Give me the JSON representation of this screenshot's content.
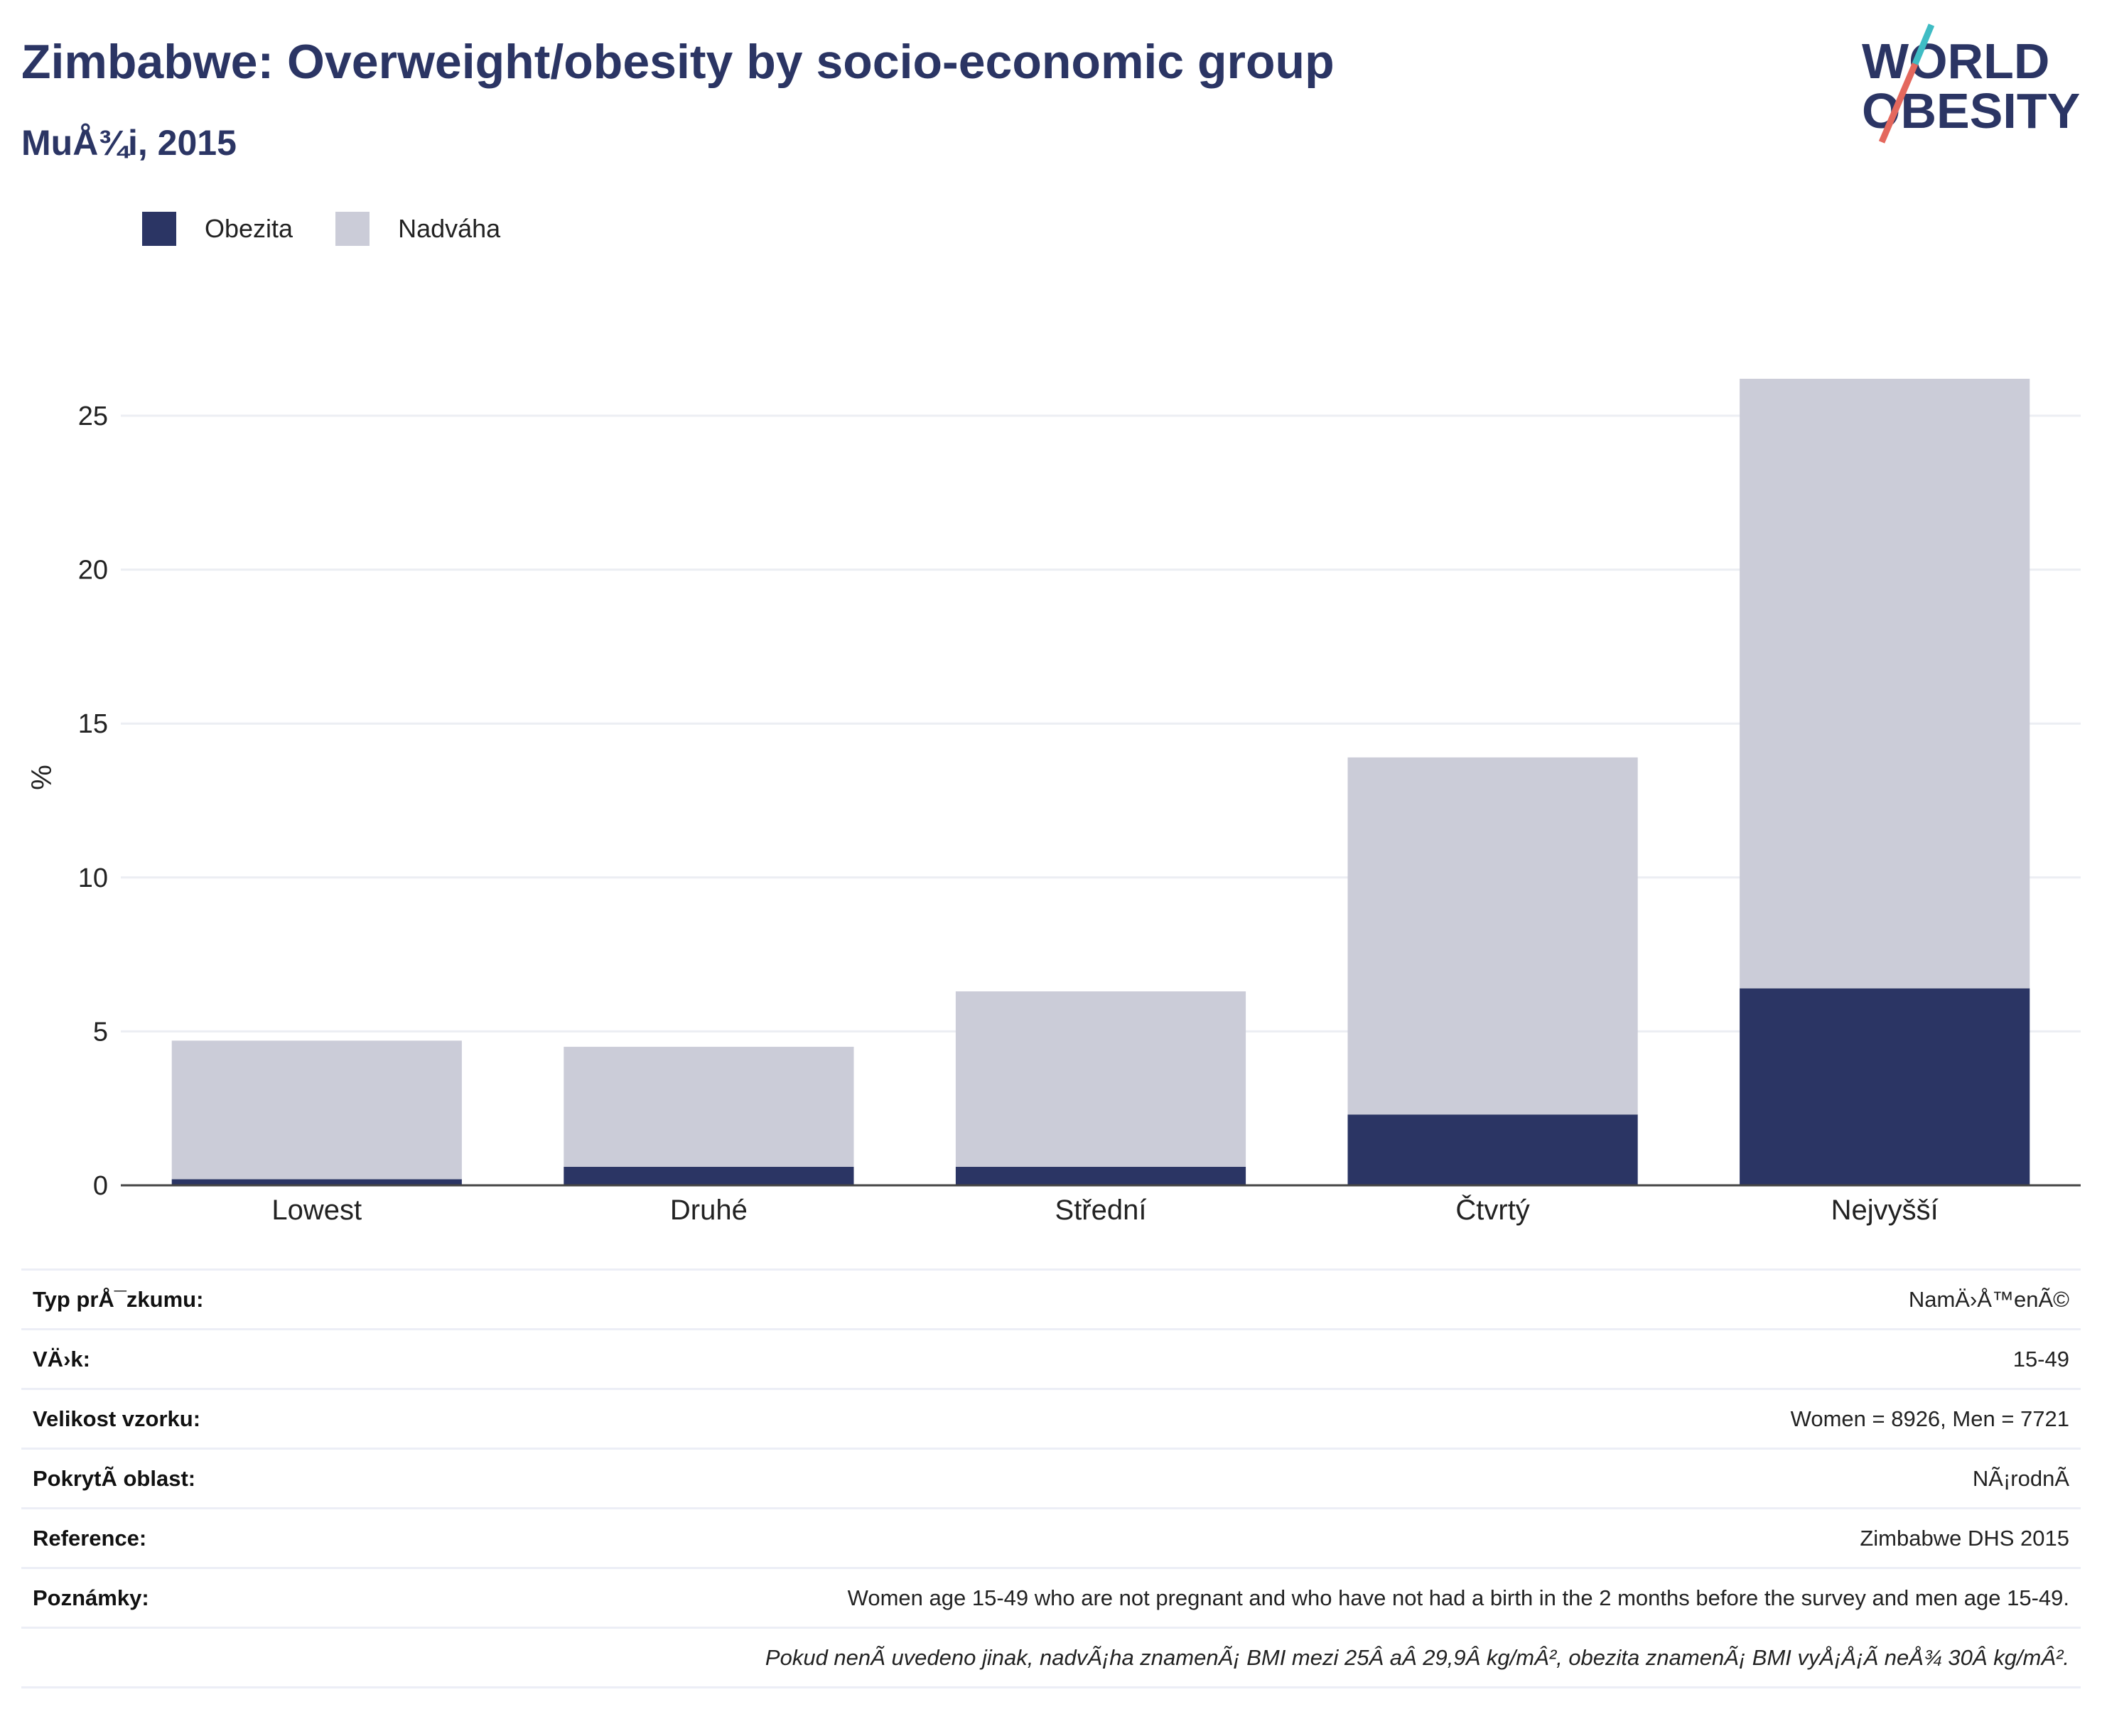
{
  "title": "Zimbabwe: Overweight/obesity by socio-economic group",
  "subtitle": "MuÅ¾i, 2015",
  "logo": {
    "line1": "WORLD",
    "line2": "OBESITY",
    "colors": {
      "text": "#2b3564",
      "slash_red": "#e4685d",
      "slash_teal": "#3fbcc4"
    }
  },
  "legend": [
    {
      "label": "Obezita",
      "color": "#2b3564"
    },
    {
      "label": "Nadváha",
      "color": "#cbccd8"
    }
  ],
  "chart_data": {
    "type": "bar",
    "stacked": true,
    "categories": [
      "Lowest",
      "Druhé",
      "Střední",
      "Čtvrtý",
      "Nejvyšší"
    ],
    "series": [
      {
        "name": "Obezita",
        "values": [
          0.2,
          0.6,
          0.6,
          2.3,
          6.4
        ],
        "color": "#2b3564"
      },
      {
        "name": "Nadváha",
        "values": [
          4.5,
          3.9,
          5.7,
          11.6,
          19.8
        ],
        "color": "#cbccd8"
      }
    ],
    "ylabel": "%",
    "ylim": [
      0,
      26.5
    ],
    "yticks": [
      0,
      5,
      10,
      15,
      20,
      25
    ],
    "grid": true,
    "legend_position": "top-left"
  },
  "info_table": [
    {
      "label": "Typ prÅ¯zkumu:",
      "value": "NamÄ›Å™enÃ©"
    },
    {
      "label": "VÄ›k:",
      "value": "15-49"
    },
    {
      "label": "Velikost vzorku:",
      "value": "Women = 8926, Men = 7721"
    },
    {
      "label": "PokrytÃ­ oblast:",
      "value": "NÃ¡rodnÃ­"
    },
    {
      "label": "Reference:",
      "value": "Zimbabwe DHS 2015"
    },
    {
      "label": "Poznámky:",
      "value": "Women age 15-49 who are not pregnant and who have not had a birth in the 2 months before the survey and men age 15-49."
    }
  ],
  "footnote": "Pokud nenÃ­ uvedeno jinak, nadvÃ¡ha znamenÃ¡ BMI mezi 25Â aÂ 29,9Â kg/mÂ², obezita znamenÃ¡ BMI vyÅ¡Å¡Ã­ neÅ¾ 30Â kg/mÂ²."
}
